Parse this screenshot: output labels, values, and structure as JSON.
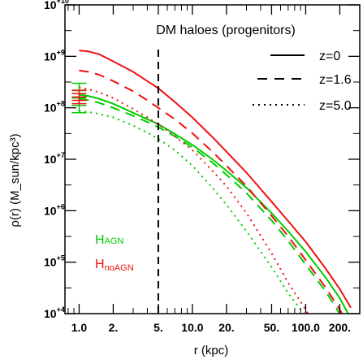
{
  "chart_data": {
    "type": "line",
    "title": "DM haloes (progenitors)",
    "xlabel": "r (kpc)",
    "ylabel": "ρ(r) (M_sun/kpc³)",
    "xscale": "log",
    "yscale": "log",
    "xlim": [
      0.75,
      300
    ],
    "ylim": [
      10000,
      10000000000
    ],
    "xtick_values": [
      1,
      2,
      5,
      10,
      20,
      50,
      100,
      200
    ],
    "xtick_labels": [
      "1.0",
      "2.",
      "5.",
      "10.0",
      "20.",
      "50.",
      "100.0",
      "200."
    ],
    "ytick_values": [
      10000,
      100000,
      1000000,
      10000000,
      100000000,
      1000000000,
      10000000000
    ],
    "ytick_bases": [
      "10",
      "10",
      "10",
      "10",
      "10",
      "10",
      "10"
    ],
    "ytick_exponents": [
      "+4",
      "+5",
      "+6",
      "+7",
      "+8",
      "+9",
      "+10"
    ],
    "grid": false,
    "vertical_reference_line": {
      "x": 5,
      "style": "dashed"
    },
    "legend": {
      "placement": "top-right",
      "entries": [
        {
          "label": "z=0",
          "style": "solid"
        },
        {
          "label": "z=1.6",
          "style": "dashed"
        },
        {
          "label": "z=5.0",
          "style": "dotted"
        }
      ]
    },
    "labels": [
      {
        "main": "H",
        "sub": "AGN",
        "color": "#00cc00"
      },
      {
        "main": "H",
        "sub": "noAGN",
        "color": "#ee1111"
      }
    ],
    "series": [
      {
        "model": "noAGN",
        "redshift": "z=0",
        "color": "#ee1111",
        "style": "solid",
        "x": [
          1,
          1.2,
          1.5,
          2,
          3,
          4,
          5,
          7,
          10,
          15,
          20,
          30,
          50,
          70,
          100,
          150,
          200,
          250
        ],
        "y": [
          1300000000.0,
          1250000000.0,
          1100000000.0,
          800000000.0,
          500000000.0,
          330000000.0,
          240000000.0,
          130000000.0,
          65000000.0,
          27000000.0,
          14000000.0,
          5500000.0,
          1500000.0,
          630000.0,
          250000.0,
          75000.0,
          30000.0,
          13000.0
        ]
      },
      {
        "model": "AGN",
        "redshift": "z=0",
        "color": "#00cc00",
        "style": "solid",
        "x": [
          1,
          1.2,
          1.5,
          2,
          3,
          4,
          5,
          7,
          10,
          15,
          20,
          30,
          50,
          70,
          100,
          150,
          200,
          250
        ],
        "y": [
          180000000.0,
          170000000.0,
          150000000.0,
          120000000.0,
          80000000.0,
          60000000.0,
          48000000.0,
          31000000.0,
          19000000.0,
          10000000.0,
          6000000.0,
          2800000.0,
          900000.0,
          400000.0,
          160000.0,
          50000.0,
          20000.0,
          8000.0
        ]
      },
      {
        "model": "noAGN",
        "redshift": "z=1.6",
        "color": "#ee1111",
        "style": "dashed",
        "x": [
          1,
          1.2,
          1.5,
          2,
          3,
          4,
          5,
          7,
          10,
          15,
          20,
          30,
          50,
          70,
          100,
          150,
          200,
          250
        ],
        "y": [
          530000000.0,
          500000000.0,
          440000000.0,
          330000000.0,
          210000000.0,
          140000000.0,
          100000000.0,
          60000000.0,
          32000000.0,
          14000000.0,
          7500000.0,
          3000000.0,
          800000.0,
          320000.0,
          110000.0,
          32000.0,
          12000.0,
          5000.0
        ]
      },
      {
        "model": "AGN",
        "redshift": "z=1.6",
        "color": "#00cc00",
        "style": "dashed",
        "x": [
          1,
          1.2,
          1.5,
          2,
          3,
          4,
          5,
          7,
          10,
          15,
          20,
          30,
          50,
          70,
          100,
          150,
          200,
          250
        ],
        "y": [
          150000000.0,
          140000000.0,
          125000000.0,
          100000000.0,
          70000000.0,
          53000000.0,
          42000000.0,
          28000000.0,
          17000000.0,
          8600000.0,
          5000000.0,
          2200000.0,
          650000.0,
          260000.0,
          90000.0,
          27000.0,
          10000.0,
          4000.0
        ]
      },
      {
        "model": "noAGN",
        "redshift": "z=5.0",
        "color": "#ee1111",
        "style": "dotted",
        "x": [
          1,
          1.2,
          1.5,
          2,
          3,
          4,
          5,
          7,
          10,
          15,
          20,
          30,
          50,
          70,
          100,
          120
        ],
        "y": [
          250000000.0,
          230000000.0,
          200000000.0,
          155000000.0,
          95000000.0,
          65000000.0,
          48000000.0,
          28000000.0,
          15000000.0,
          6000000.0,
          3000000.0,
          900000.0,
          150000.0,
          40000.0,
          12000.0,
          6000.0
        ]
      },
      {
        "model": "AGN",
        "redshift": "z=5.0",
        "color": "#00cc00",
        "style": "dotted",
        "x": [
          1,
          1.2,
          1.5,
          2,
          3,
          4,
          5,
          7,
          10,
          15,
          20,
          30,
          50,
          70,
          100
        ],
        "y": [
          88000000.0,
          83000000.0,
          76000000.0,
          65000000.0,
          45000000.0,
          33000000.0,
          25000000.0,
          15000000.0,
          7500000.0,
          2800000.0,
          1300000.0,
          400000.0,
          80000.0,
          25000.0,
          9000.0
        ]
      }
    ],
    "error_bars": [
      {
        "color": "#00cc00",
        "x": 1,
        "y_low": 80000000.0,
        "y_high": 300000000.0
      },
      {
        "color": "#ee1111",
        "x": 1,
        "y_low": 120000000.0,
        "y_high": 220000000.0
      }
    ]
  }
}
